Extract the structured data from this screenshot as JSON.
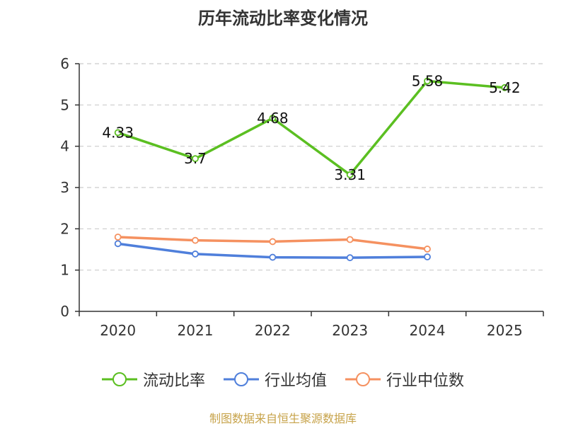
{
  "chart_data": {
    "type": "line",
    "title": "历年流动比率变化情况",
    "categories": [
      "2020",
      "2021",
      "2022",
      "2023",
      "2024",
      "2025"
    ],
    "ylim": [
      0,
      6
    ],
    "yticks": [
      "0",
      "1",
      "2",
      "3",
      "4",
      "5",
      "6"
    ],
    "grid": true,
    "legend_position": "bottom",
    "series": [
      {
        "name": "流动比率",
        "color": "#5bbf21",
        "values": [
          4.33,
          3.7,
          4.68,
          3.31,
          5.58,
          5.42
        ],
        "labels": [
          "4.33",
          "3.7",
          "4.68",
          "3.31",
          "5.58",
          "5.42"
        ]
      },
      {
        "name": "行业均值",
        "color": "#4f7fdb",
        "values": [
          1.64,
          1.39,
          1.31,
          1.3,
          1.32,
          null
        ]
      },
      {
        "name": "行业中位数",
        "color": "#f59160",
        "values": [
          1.8,
          1.72,
          1.69,
          1.74,
          1.51,
          null
        ]
      }
    ]
  },
  "footer": {
    "source": "制图数据来自恒生聚源数据库"
  }
}
